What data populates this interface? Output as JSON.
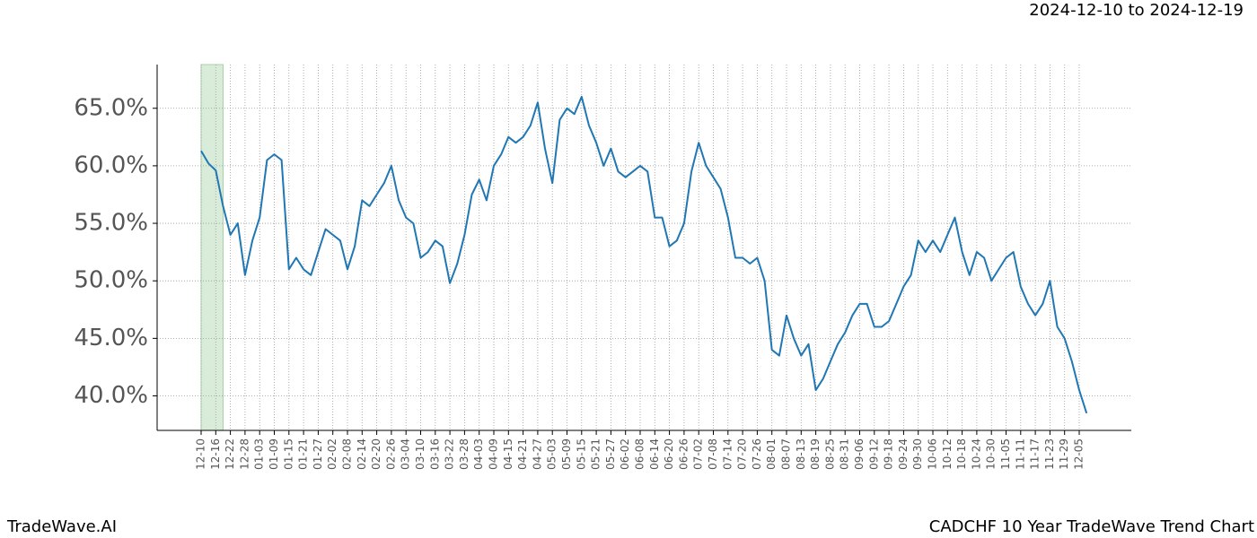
{
  "chart_data": {
    "type": "line",
    "subtitle": "2024-12-10 to 2024-12-19",
    "brand": "TradeWave.AI",
    "title": "CADCHF 10 Year TradeWave Trend Chart",
    "color": "#1f77b4",
    "highlight": [
      0,
      3
    ],
    "highlight_color": "#d9ecd9",
    "grid": true,
    "ylim": [
      37.0,
      68.8
    ],
    "yticks": [
      {
        "value": 40,
        "label": "40.0%"
      },
      {
        "value": 45,
        "label": "45.0%"
      },
      {
        "value": 50,
        "label": "50.0%"
      },
      {
        "value": 55,
        "label": "55.0%"
      },
      {
        "value": 60,
        "label": "60.0%"
      },
      {
        "value": 65,
        "label": "65.0%"
      }
    ],
    "categories": [
      "12-10",
      null,
      "12-16",
      null,
      "12-22",
      null,
      "12-28",
      null,
      "01-03",
      null,
      "01-09",
      null,
      "01-15",
      null,
      "01-21",
      null,
      "01-27",
      null,
      "02-02",
      null,
      "02-08",
      null,
      "02-14",
      null,
      "02-20",
      null,
      "02-26",
      null,
      "03-04",
      null,
      "03-10",
      null,
      "03-16",
      null,
      "03-22",
      null,
      "03-28",
      null,
      "04-03",
      null,
      "04-09",
      null,
      "04-15",
      null,
      "04-21",
      null,
      "04-27",
      null,
      "05-03",
      null,
      "05-09",
      null,
      "05-15",
      null,
      "05-21",
      null,
      "05-27",
      null,
      "06-02",
      null,
      "06-08",
      null,
      "06-14",
      null,
      "06-20",
      null,
      "06-26",
      null,
      "07-02",
      null,
      "07-08",
      null,
      "07-14",
      null,
      "07-20",
      null,
      "07-26",
      null,
      "08-01",
      null,
      "08-07",
      null,
      "08-13",
      null,
      "08-19",
      null,
      "08-25",
      null,
      "08-31",
      null,
      "09-06",
      null,
      "09-12",
      null,
      "09-18",
      null,
      "09-24",
      null,
      "09-30",
      null,
      "10-06",
      null,
      "10-12",
      null,
      "10-18",
      null,
      "10-24",
      null,
      "10-30",
      null,
      "11-05",
      null,
      "11-11",
      null,
      "11-17",
      null,
      "11-23",
      null,
      "11-29",
      null,
      "12-05",
      null
    ],
    "values": [
      61.3,
      60.2,
      59.6,
      56.5,
      54.0,
      55.0,
      50.5,
      53.5,
      55.5,
      60.5,
      61.0,
      60.5,
      51.0,
      52.0,
      51.0,
      50.5,
      52.5,
      54.5,
      54.0,
      53.5,
      51.0,
      53.0,
      57.0,
      56.5,
      57.5,
      58.5,
      60.0,
      57.0,
      55.5,
      55.0,
      52.0,
      52.5,
      53.5,
      53.0,
      49.8,
      51.5,
      54.0,
      57.5,
      58.8,
      57.0,
      60.0,
      61.0,
      62.5,
      62.0,
      62.5,
      63.5,
      65.5,
      61.5,
      58.5,
      64.0,
      65.0,
      64.5,
      66.0,
      63.5,
      62.0,
      60.0,
      61.5,
      59.5,
      59.0,
      59.5,
      60.0,
      59.5,
      55.5,
      55.5,
      53.0,
      53.5,
      55.0,
      59.5,
      62.0,
      60.0,
      59.0,
      58.0,
      55.5,
      52.0,
      52.0,
      51.5,
      52.0,
      50.0,
      44.0,
      43.5,
      47.0,
      45.0,
      43.5,
      44.5,
      40.5,
      41.5,
      43.0,
      44.5,
      45.5,
      47.0,
      48.0,
      48.0,
      46.0,
      46.0,
      46.5,
      48.0,
      49.5,
      50.5,
      53.5,
      52.5,
      53.5,
      52.5,
      54.0,
      55.5,
      52.5,
      50.5,
      52.5,
      52.0,
      50.0,
      51.0,
      52.0,
      52.5,
      49.5,
      48.0,
      47.0,
      48.0,
      50.0,
      46.0,
      45.0,
      43.0,
      40.5,
      38.5
    ]
  }
}
